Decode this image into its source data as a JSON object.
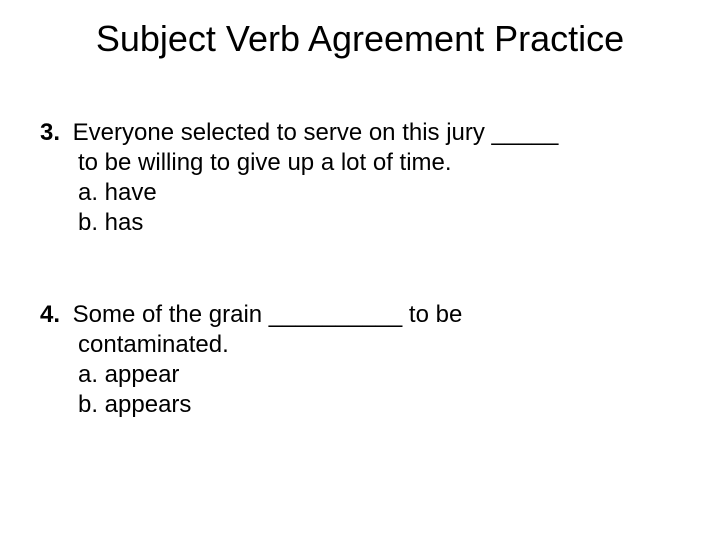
{
  "title": "Subject Verb Agreement Practice",
  "questions": [
    {
      "number": "3.",
      "line1": "Everyone selected to serve on this jury _____",
      "line2": "to be willing to give up a lot of time.",
      "option_a": "a. have",
      "option_b": "b. has"
    },
    {
      "number": "4.",
      "line1": "Some of the grain __________ to be",
      "line2": "contaminated.",
      "option_a": "a. appear",
      "option_b": "b. appears"
    }
  ],
  "style": {
    "background_color": "#ffffff",
    "text_color": "#000000",
    "title_fontsize": 36,
    "body_fontsize": 24,
    "font_family": "Arial"
  }
}
